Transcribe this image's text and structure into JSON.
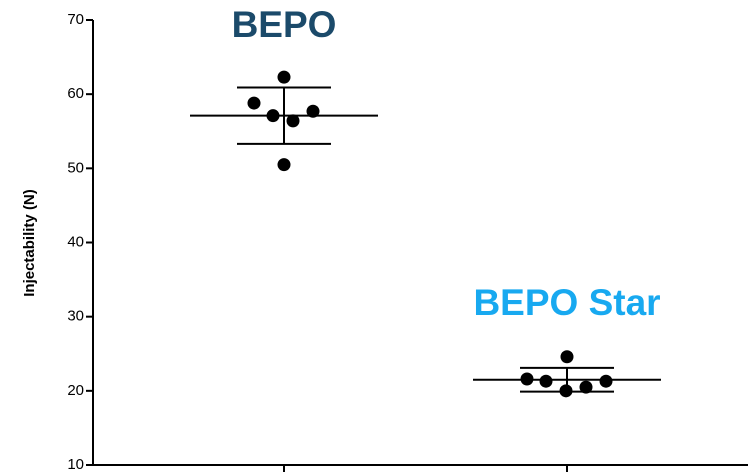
{
  "chart_data": {
    "type": "scatter",
    "y_label": "Injectability (N)",
    "ylim": [
      10,
      70
    ],
    "yticks": [
      10,
      20,
      30,
      40,
      50,
      60,
      70
    ],
    "groups": [
      {
        "name": "BEPO",
        "color": "#1b4a6a",
        "values": [
          62.3,
          58.8,
          57.1,
          56.4,
          57.7,
          50.5
        ],
        "mean": 57.1,
        "sd": 3.8
      },
      {
        "name": "BEPO Star",
        "color": "#18a9f0",
        "values": [
          24.6,
          21.6,
          21.3,
          20.0,
          20.5,
          21.3
        ],
        "mean": 21.5,
        "sd": 1.6
      }
    ]
  }
}
